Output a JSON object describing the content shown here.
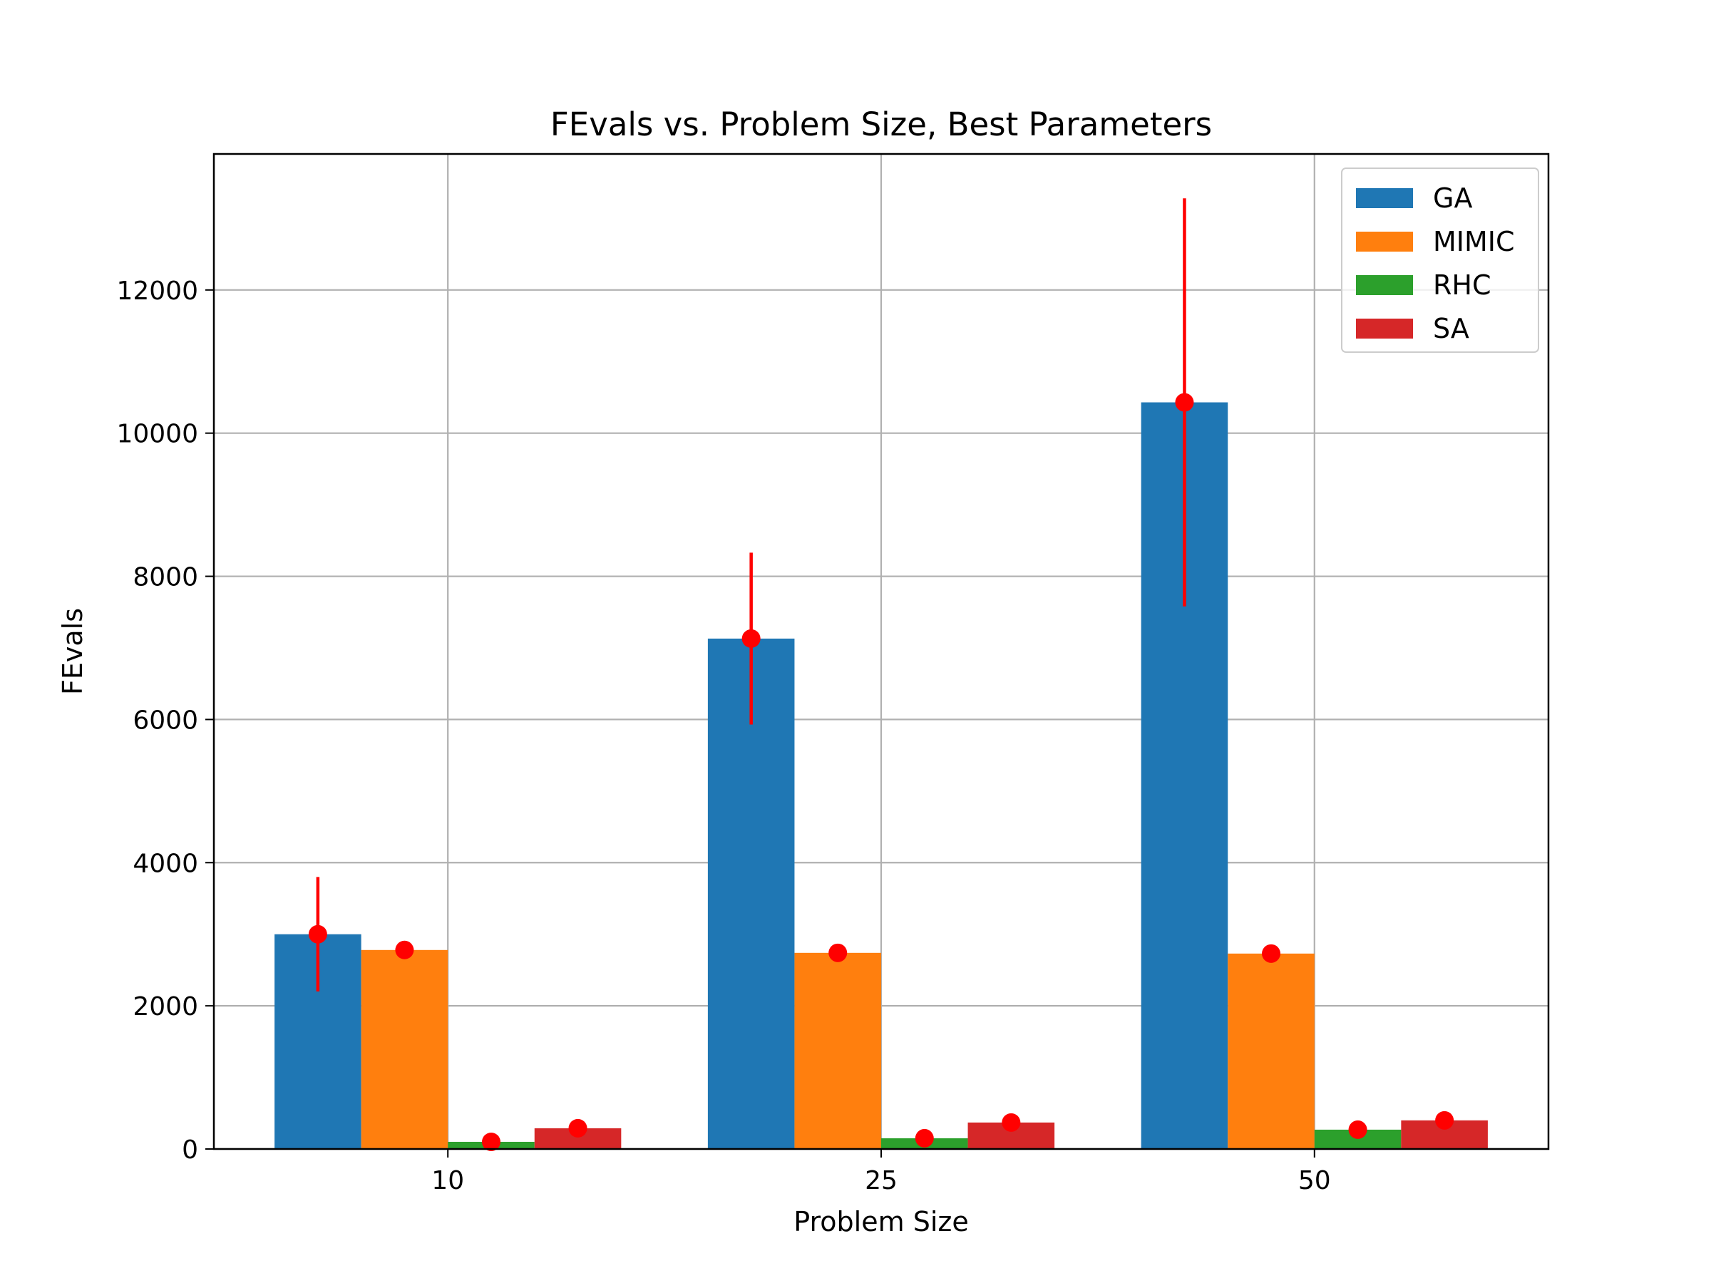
{
  "chart_data": {
    "type": "bar",
    "title": "FEvals vs. Problem Size, Best Parameters",
    "xlabel": "Problem Size",
    "ylabel": "FEvals",
    "categories": [
      "10",
      "25",
      "50"
    ],
    "ylim": [
      0,
      13900
    ],
    "yticks": [
      0,
      2000,
      4000,
      6000,
      8000,
      10000,
      12000
    ],
    "grid": true,
    "legend_position": "top-right",
    "series": [
      {
        "name": "GA",
        "color": "#1f77b4",
        "values": [
          3000,
          7130,
          10430
        ],
        "error": [
          800,
          1200,
          2850
        ]
      },
      {
        "name": "MIMIC",
        "color": "#ff7f0e",
        "values": [
          2780,
          2740,
          2730
        ],
        "error": [
          0,
          0,
          0
        ]
      },
      {
        "name": "RHC",
        "color": "#2ca02c",
        "values": [
          100,
          150,
          270
        ],
        "error": [
          0,
          0,
          0
        ]
      },
      {
        "name": "SA",
        "color": "#d62728",
        "values": [
          290,
          370,
          400
        ],
        "error": [
          0,
          0,
          0
        ]
      }
    ],
    "marker_color": "#ff0000"
  }
}
